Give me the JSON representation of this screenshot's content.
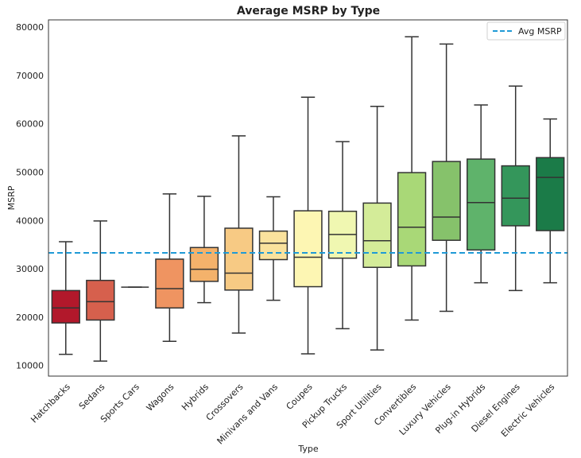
{
  "chart_data": {
    "type": "box",
    "title": "Average MSRP by Type",
    "xlabel": "Type",
    "ylabel": "MSRP",
    "ylim": [
      7800,
      81500
    ],
    "yticks": [
      10000,
      20000,
      30000,
      40000,
      50000,
      60000,
      70000,
      80000
    ],
    "grid": false,
    "legend_position": "top-right",
    "reference_line": {
      "name": "Avg MSRP",
      "value": 33300,
      "color": "#1f9ad6",
      "style": "dashed"
    },
    "categories": [
      "Hatchbacks",
      "Sedans",
      "Sports Cars",
      "Wagons",
      "Hybrids",
      "Crossovers",
      "Minivans and Vans",
      "Coupes",
      "Pickup Trucks",
      "Sport Utilities",
      "Convertibles",
      "Luxury Vehicles",
      "Plug-in Hybrids",
      "Diesel Engines",
      "Electric Vehicles"
    ],
    "boxes": [
      {
        "category": "Hatchbacks",
        "whisker_low": 12300,
        "q1": 18800,
        "median": 21900,
        "q3": 25500,
        "whisker_high": 35600,
        "color": "#b2182b"
      },
      {
        "category": "Sedans",
        "whisker_low": 10900,
        "q1": 19400,
        "median": 23200,
        "q3": 27600,
        "whisker_high": 39900,
        "color": "#d6604d"
      },
      {
        "category": "Sports Cars",
        "whisker_low": 26200,
        "q1": 26200,
        "median": 26200,
        "q3": 26200,
        "whisker_high": 26200,
        "color": "#e2593a"
      },
      {
        "category": "Wagons",
        "whisker_low": 15000,
        "q1": 21900,
        "median": 25900,
        "q3": 32000,
        "whisker_high": 45500,
        "color": "#ef9461"
      },
      {
        "category": "Hybrids",
        "whisker_low": 23000,
        "q1": 27400,
        "median": 29900,
        "q3": 34400,
        "whisker_high": 45000,
        "color": "#f4b26b"
      },
      {
        "category": "Crossovers",
        "whisker_low": 16700,
        "q1": 25600,
        "median": 29100,
        "q3": 38400,
        "whisker_high": 57500,
        "color": "#f7ca84"
      },
      {
        "category": "Minivans and Vans",
        "whisker_low": 23500,
        "q1": 31900,
        "median": 35300,
        "q3": 37800,
        "whisker_high": 44900,
        "color": "#fae29d"
      },
      {
        "category": "Coupes",
        "whisker_low": 12400,
        "q1": 26300,
        "median": 32400,
        "q3": 42000,
        "whisker_high": 65500,
        "color": "#fdf6b3"
      },
      {
        "category": "Pickup Trucks",
        "whisker_low": 17600,
        "q1": 32200,
        "median": 37100,
        "q3": 41900,
        "whisker_high": 56300,
        "color": "#f0f7b1"
      },
      {
        "category": "Sport Utilities",
        "whisker_low": 13200,
        "q1": 30300,
        "median": 35800,
        "q3": 43600,
        "whisker_high": 63600,
        "color": "#d4ec99"
      },
      {
        "category": "Convertibles",
        "whisker_low": 19400,
        "q1": 30600,
        "median": 38600,
        "q3": 49900,
        "whisker_high": 78000,
        "color": "#a9d877"
      },
      {
        "category": "Luxury Vehicles",
        "whisker_low": 21200,
        "q1": 35900,
        "median": 40700,
        "q3": 52200,
        "whisker_high": 76500,
        "color": "#86c26b"
      },
      {
        "category": "Plug-in Hybrids",
        "whisker_low": 27100,
        "q1": 33900,
        "median": 43700,
        "q3": 52700,
        "whisker_high": 63900,
        "color": "#5fb36b"
      },
      {
        "category": "Diesel Engines",
        "whisker_low": 25500,
        "q1": 38900,
        "median": 44600,
        "q3": 51300,
        "whisker_high": 67800,
        "color": "#34965b"
      },
      {
        "category": "Electric Vehicles",
        "whisker_low": 27100,
        "q1": 37900,
        "median": 48900,
        "q3": 53000,
        "whisker_high": 61000,
        "color": "#1b7b48"
      }
    ]
  }
}
